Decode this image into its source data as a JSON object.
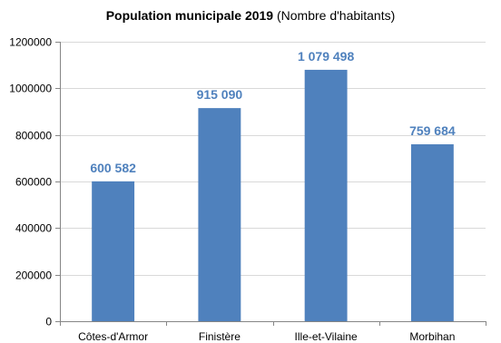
{
  "chart_data": {
    "type": "bar",
    "title": "Population municipale 2019",
    "subtitle": "(Nombre d'habitants)",
    "xlabel": "",
    "ylabel": "",
    "categories": [
      "Côtes-d'Armor",
      "Finistère",
      "Ille-et-Vilaine",
      "Morbihan"
    ],
    "values": [
      600582,
      915090,
      1079498,
      759684
    ],
    "data_labels": [
      "600 582",
      "915 090",
      "1 079 498",
      "759 684"
    ],
    "ylim": [
      0,
      1200000
    ],
    "yticks": [
      0,
      200000,
      400000,
      600000,
      800000,
      1000000,
      1200000
    ],
    "ytick_labels": [
      "0",
      "200000",
      "400000",
      "600000",
      "800000",
      "1000000",
      "1200000"
    ],
    "grid": true,
    "legend": "none",
    "colors": {
      "bar": "#4f81bd",
      "data_label": "#4f81bd",
      "grid": "#d9d9d9",
      "axis": "#868686"
    }
  }
}
